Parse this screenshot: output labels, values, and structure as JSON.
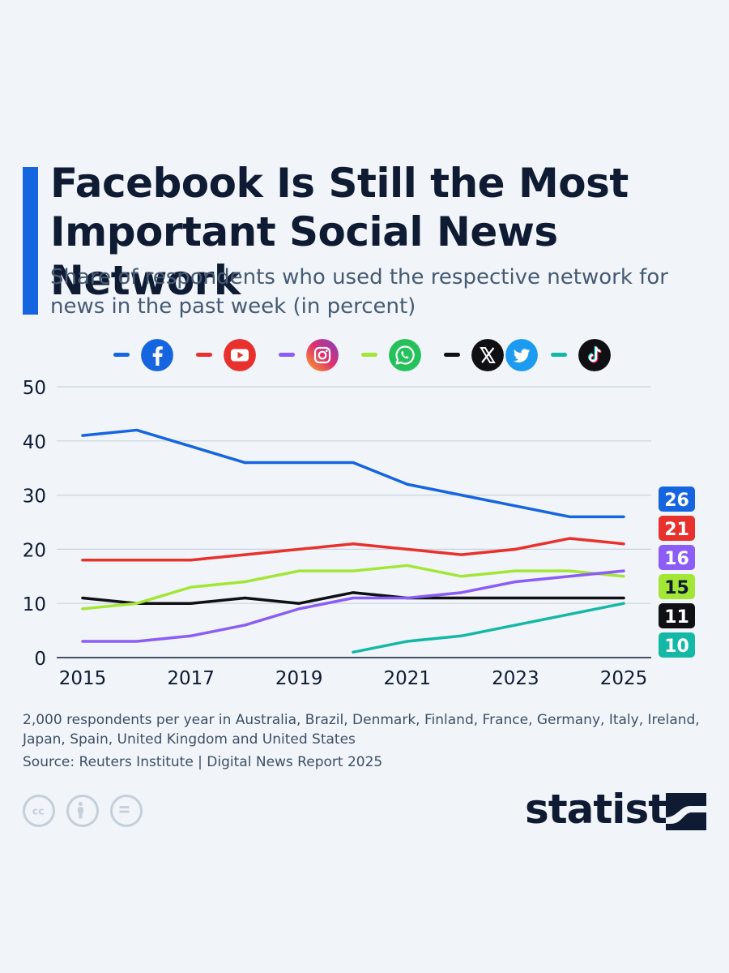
{
  "header": {
    "title": "Facebook Is Still the Most Important Social News Network",
    "subtitle": "Share of respondents who used the respective network for news in the past week (in percent)"
  },
  "legend": [
    {
      "icon": "facebook-icon",
      "color": "#1565e0"
    },
    {
      "icon": "youtube-icon",
      "color": "#e8312d"
    },
    {
      "icon": "instagram-icon",
      "color": "#8b5cf6"
    },
    {
      "icon": "whatsapp-icon",
      "color": "#a3e635"
    },
    {
      "icon": "x-twitter-icon",
      "color": "#0f0f14"
    },
    {
      "icon": "tiktok-icon",
      "color": "#14b8a6"
    }
  ],
  "chart_data": {
    "type": "line",
    "x": [
      2015,
      2016,
      2017,
      2018,
      2019,
      2020,
      2021,
      2022,
      2023,
      2024,
      2025
    ],
    "xticks": [
      "2015",
      "2017",
      "2019",
      "2021",
      "2023",
      "2025"
    ],
    "yticks": [
      "0",
      "10",
      "20",
      "30",
      "40",
      "50"
    ],
    "ylim": [
      0,
      50
    ],
    "grid": true,
    "series": [
      {
        "key": "facebook",
        "color": "#1565e0",
        "end_label": "26",
        "values": [
          41,
          42,
          39,
          36,
          36,
          36,
          32,
          30,
          28,
          26,
          26
        ]
      },
      {
        "key": "youtube",
        "color": "#e8312d",
        "end_label": "21",
        "values": [
          18,
          18,
          18,
          19,
          20,
          21,
          20,
          19,
          20,
          22,
          21
        ]
      },
      {
        "key": "instagram",
        "color": "#8b5cf6",
        "end_label": "16",
        "values": [
          3,
          3,
          4,
          6,
          9,
          11,
          11,
          12,
          14,
          15,
          16
        ]
      },
      {
        "key": "whatsapp",
        "color": "#a3e635",
        "end_label": "15",
        "values": [
          9,
          10,
          13,
          14,
          16,
          16,
          17,
          15,
          16,
          16,
          15
        ]
      },
      {
        "key": "x-twitter",
        "color": "#0f0f14",
        "end_label": "11",
        "values": [
          11,
          10,
          10,
          11,
          10,
          12,
          11,
          11,
          11,
          11,
          11
        ]
      },
      {
        "key": "tiktok",
        "color": "#14b8a6",
        "end_label": "10",
        "values": [
          null,
          null,
          null,
          null,
          null,
          1,
          3,
          4,
          6,
          8,
          10
        ]
      }
    ]
  },
  "footer": {
    "note": "2,000 respondents per year in Australia, Brazil, Denmark, Finland, France, Germany, Italy, Ireland, Japan, Spain, United Kingdom and United States",
    "source": "Source: Reuters Institute | Digital News Report 2025",
    "brand": "statista"
  }
}
